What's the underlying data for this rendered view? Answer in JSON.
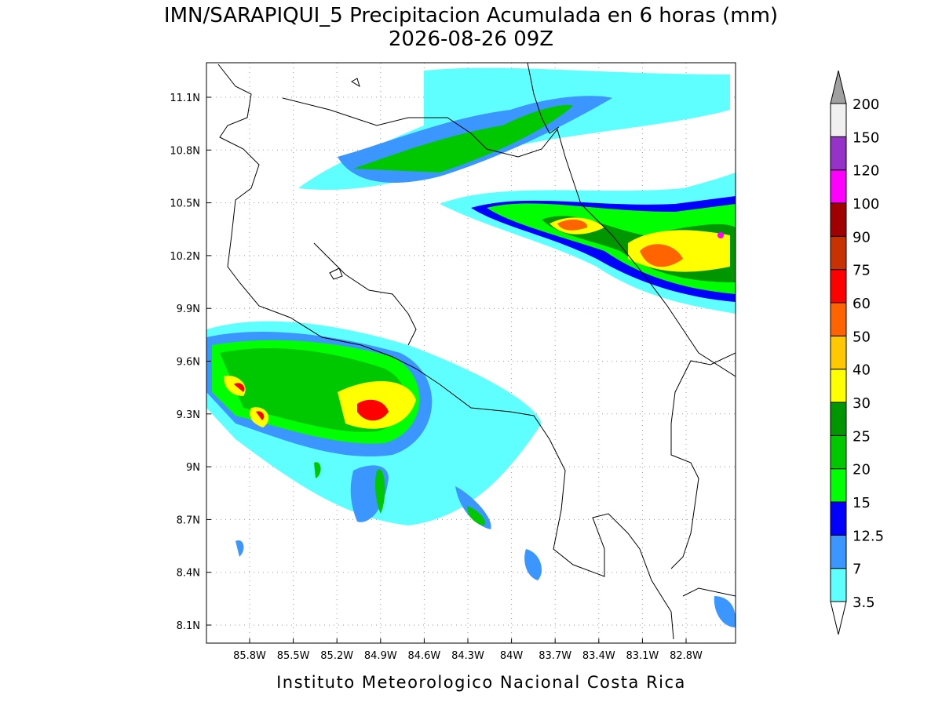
{
  "title": "IMN/SARAPIQUI_5 Precipitacion Acumulada en 6 horas (mm)",
  "subtitle": "2026-08-26 09Z",
  "footer": "Instituto Meteorologico Nacional Costa Rica",
  "map": {
    "lon_labels": [
      "85.8W",
      "85.5W",
      "85.2W",
      "84.9W",
      "84.6W",
      "84.3W",
      "84W",
      "83.7W",
      "83.4W",
      "83.1W",
      "82.8W"
    ],
    "lat_labels": [
      "11.1N",
      "10.8N",
      "10.5N",
      "10.2N",
      "9.9N",
      "9.6N",
      "9.3N",
      "9N",
      "8.7N",
      "8.4N",
      "8.1N"
    ]
  },
  "colorbar": {
    "levels": [
      3.5,
      7,
      12.5,
      15,
      20,
      25,
      30,
      40,
      50,
      60,
      75,
      90,
      100,
      120,
      150,
      200
    ],
    "colors": [
      "#60ffff",
      "#3c96ff",
      "#0000ff",
      "#00ff00",
      "#00c800",
      "#009600",
      "#ffff00",
      "#ffc800",
      "#ff6400",
      "#ff0000",
      "#c83200",
      "#a00000",
      "#ff00ff",
      "#9632c8",
      "#f0f0f0"
    ],
    "over_color": "#a0a0a0",
    "under_color": "#ffffff"
  }
}
